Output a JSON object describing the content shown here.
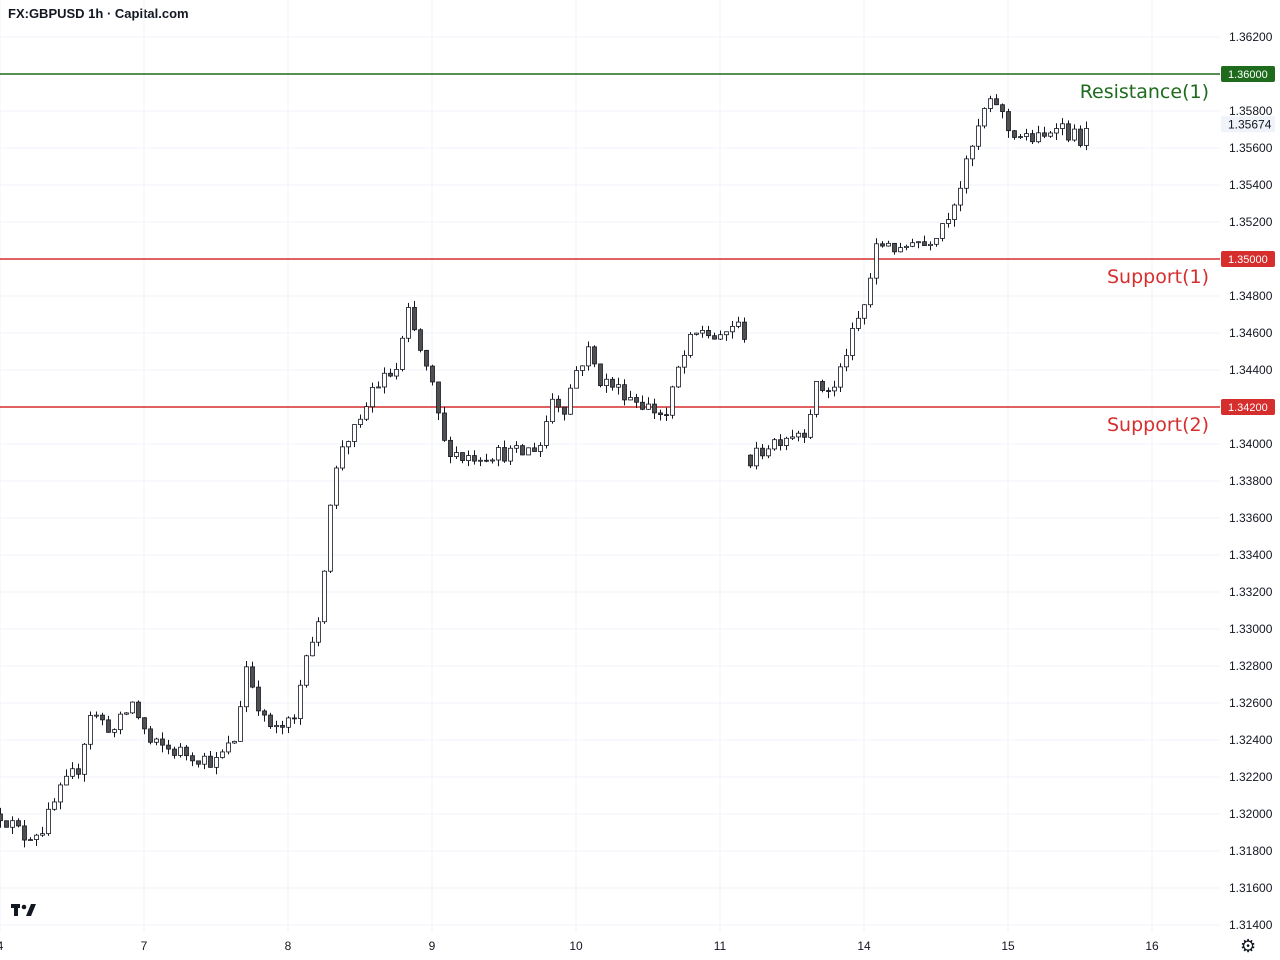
{
  "header": {
    "title": "FX:GBPUSD 1h · Capital.com"
  },
  "chart_data": {
    "type": "candlestick",
    "symbol": "FX:GBPUSD",
    "timeframe": "1h",
    "source": "Capital.com",
    "current_price": "1.35674",
    "ylim": [
      1.3133,
      1.3638
    ],
    "y_ticks": [
      "1.36200",
      "1.35800",
      "1.35600",
      "1.35400",
      "1.35200",
      "1.34800",
      "1.34600",
      "1.34400",
      "1.34000",
      "1.33800",
      "1.33600",
      "1.33400",
      "1.33200",
      "1.33000",
      "1.32800",
      "1.32600",
      "1.32400",
      "1.32200",
      "1.32000",
      "1.31800",
      "1.31600",
      "1.31400"
    ],
    "x_ticks": [
      {
        "label": "4",
        "bar": 0
      },
      {
        "label": "7",
        "bar": 24
      },
      {
        "label": "8",
        "bar": 48
      },
      {
        "label": "9",
        "bar": 72
      },
      {
        "label": "10",
        "bar": 96
      },
      {
        "label": "11",
        "bar": 120
      },
      {
        "label": "14",
        "bar": 144
      },
      {
        "label": "15",
        "bar": 168
      },
      {
        "label": "16",
        "bar": 192
      }
    ],
    "levels": [
      {
        "name": "Resistance(1)",
        "price": 1.36,
        "badge": "1.36000",
        "color": "#1e6b1e"
      },
      {
        "name": "Support(1)",
        "price": 1.35,
        "badge": "1.35000",
        "color": "#d62d2d"
      },
      {
        "name": "Support(2)",
        "price": 1.342,
        "badge": "1.34200",
        "color": "#d62d2d"
      }
    ],
    "anchors": [
      [
        0,
        1.32
      ],
      [
        4,
        1.3188
      ],
      [
        7,
        1.3192
      ],
      [
        10,
        1.3212
      ],
      [
        13,
        1.3225
      ],
      [
        15,
        1.3255
      ],
      [
        19,
        1.3245
      ],
      [
        22,
        1.326
      ],
      [
        25,
        1.3238
      ],
      [
        28,
        1.3235
      ],
      [
        32,
        1.3232
      ],
      [
        36,
        1.3228
      ],
      [
        39,
        1.324
      ],
      [
        41,
        1.328
      ],
      [
        44,
        1.325
      ],
      [
        46,
        1.3245
      ],
      [
        49,
        1.325
      ],
      [
        51,
        1.329
      ],
      [
        53,
        1.33
      ],
      [
        55,
        1.337
      ],
      [
        57,
        1.34
      ],
      [
        60,
        1.341
      ],
      [
        62,
        1.343
      ],
      [
        66,
        1.344
      ],
      [
        68,
        1.347
      ],
      [
        70,
        1.345
      ],
      [
        72,
        1.343
      ],
      [
        74,
        1.34
      ],
      [
        77,
        1.3393
      ],
      [
        82,
        1.3395
      ],
      [
        87,
        1.3395
      ],
      [
        90,
        1.34
      ],
      [
        92,
        1.3425
      ],
      [
        94,
        1.342
      ],
      [
        96,
        1.344
      ],
      [
        98,
        1.345
      ],
      [
        100,
        1.3435
      ],
      [
        104,
        1.3428
      ],
      [
        108,
        1.342
      ],
      [
        111,
        1.3415
      ],
      [
        113,
        1.344
      ],
      [
        115,
        1.3455
      ],
      [
        117,
        1.3462
      ],
      [
        120,
        1.3455
      ],
      [
        122,
        1.3465
      ],
      [
        124,
        1.346
      ],
      [
        125,
        1.339
      ],
      [
        128,
        1.34
      ],
      [
        131,
        1.3405
      ],
      [
        134,
        1.3408
      ],
      [
        136,
        1.343
      ],
      [
        139,
        1.343
      ],
      [
        141,
        1.345
      ],
      [
        144,
        1.3475
      ],
      [
        146,
        1.3505
      ],
      [
        148,
        1.351
      ],
      [
        150,
        1.3502
      ],
      [
        152,
        1.3512
      ],
      [
        154,
        1.3508
      ],
      [
        156,
        1.3515
      ],
      [
        158,
        1.3525
      ],
      [
        160,
        1.354
      ],
      [
        162,
        1.356
      ],
      [
        164,
        1.358
      ],
      [
        166,
        1.3585
      ],
      [
        168,
        1.357
      ],
      [
        171,
        1.3565
      ],
      [
        174,
        1.3565
      ],
      [
        176,
        1.3575
      ],
      [
        178,
        1.3568
      ],
      [
        180,
        1.3565
      ],
      [
        181,
        1.3567
      ]
    ],
    "candle_count": 181,
    "grid": true,
    "legend": "none"
  },
  "footer": {
    "logo_icon": "tradingview-logo-icon",
    "settings_icon": "gear-icon"
  }
}
